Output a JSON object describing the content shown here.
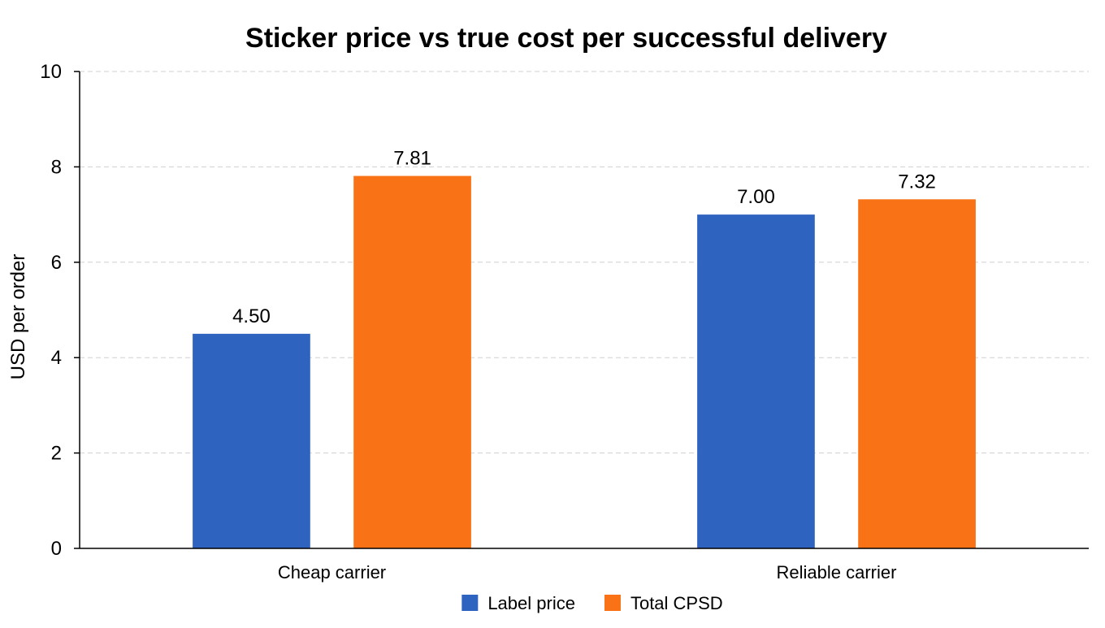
{
  "chart_data": {
    "type": "bar",
    "title": "Sticker price vs true cost per successful delivery",
    "xlabel": "",
    "ylabel": "USD per order",
    "ylim": [
      0,
      10
    ],
    "yticks": [
      "0",
      "2",
      "4",
      "6",
      "8",
      "10"
    ],
    "grid": true,
    "legend_placement": "bottom-center",
    "categories": [
      "Cheap carrier",
      "Reliable carrier"
    ],
    "series": [
      {
        "name": "Label price",
        "color": "#2f63c0",
        "values": [
          4.5,
          7.0
        ],
        "labels": [
          "4.50",
          "7.00"
        ]
      },
      {
        "name": "Total CPSD",
        "color": "#f97316",
        "values": [
          7.81,
          7.32
        ],
        "labels": [
          "7.81",
          "7.32"
        ]
      }
    ]
  }
}
